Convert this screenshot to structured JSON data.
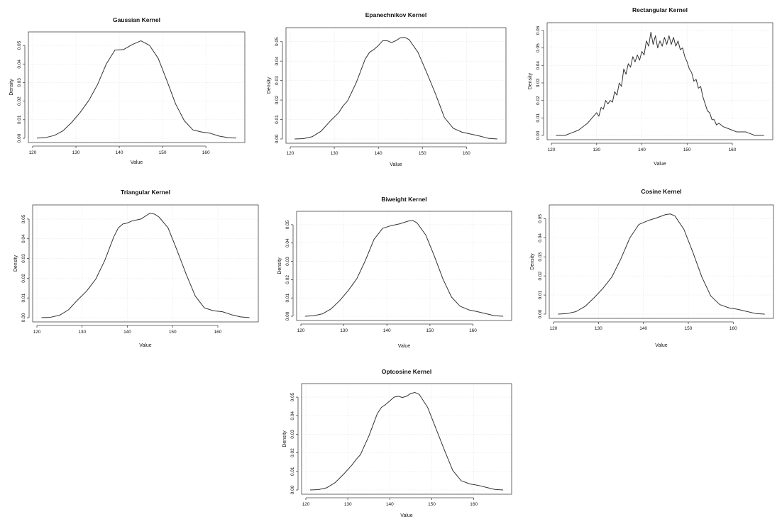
{
  "chart_data": [
    {
      "type": "line",
      "title": "Gaussian Kernel",
      "xlabel": "Value",
      "ylabel": "Density",
      "xlim": [
        120,
        168
      ],
      "ylim": [
        0,
        0.055
      ],
      "xticks": [
        120,
        130,
        140,
        150,
        160
      ],
      "yticks": [
        0.0,
        0.01,
        0.02,
        0.03,
        0.04,
        0.05
      ],
      "ytick_labels": [
        "0.00",
        "0.01",
        "0.02",
        "0.03",
        "0.04",
        "0.05"
      ],
      "grid": true,
      "x": [
        121,
        123,
        125,
        127,
        129,
        131,
        133,
        135,
        137,
        139,
        141,
        143,
        145,
        147,
        149,
        151,
        153,
        155,
        157,
        159,
        161,
        163,
        165,
        167
      ],
      "y": [
        0.0001,
        0.0004,
        0.0015,
        0.004,
        0.0085,
        0.014,
        0.0205,
        0.029,
        0.04,
        0.0475,
        0.0478,
        0.0505,
        0.0525,
        0.05,
        0.043,
        0.031,
        0.0185,
        0.0095,
        0.0045,
        0.0034,
        0.0027,
        0.0012,
        0.0004,
        0.0001
      ]
    },
    {
      "type": "line",
      "title": "Epanechnikov Kernel",
      "xlabel": "Value",
      "ylabel": "Density",
      "xlim": [
        120,
        168
      ],
      "ylim": [
        0,
        0.055
      ],
      "xticks": [
        120,
        130,
        140,
        150,
        160
      ],
      "yticks": [
        0.0,
        0.01,
        0.02,
        0.03,
        0.04,
        0.05
      ],
      "ytick_labels": [
        "0.00",
        "0.01",
        "0.02",
        "0.03",
        "0.04",
        "0.05"
      ],
      "grid": true,
      "x": [
        121,
        123,
        125,
        127,
        129,
        131,
        132,
        133,
        135,
        137,
        138,
        139,
        140,
        141,
        142,
        143,
        144,
        145,
        146,
        147,
        149,
        151,
        153,
        155,
        157,
        159,
        161,
        163,
        165,
        167
      ],
      "y": [
        0.0,
        0.0002,
        0.0012,
        0.004,
        0.009,
        0.0135,
        0.017,
        0.0195,
        0.029,
        0.041,
        0.0445,
        0.046,
        0.048,
        0.0505,
        0.0505,
        0.0495,
        0.0505,
        0.052,
        0.0522,
        0.051,
        0.0445,
        0.034,
        0.023,
        0.011,
        0.0055,
        0.0035,
        0.0025,
        0.0015,
        0.0003,
        0.0
      ]
    },
    {
      "type": "line",
      "title": "Rectangular Kernel",
      "xlabel": "Value",
      "ylabel": "Density",
      "xlim": [
        120,
        168
      ],
      "ylim": [
        0,
        0.062
      ],
      "xticks": [
        120,
        130,
        140,
        150,
        160
      ],
      "yticks": [
        0.0,
        0.01,
        0.02,
        0.03,
        0.04,
        0.05,
        0.06
      ],
      "ytick_labels": [
        "0.00",
        "0.01",
        "0.02",
        "0.03",
        "0.04",
        "0.05",
        "0.06"
      ],
      "grid": true,
      "x": [
        121,
        123,
        124,
        125,
        126,
        127,
        128,
        129,
        130,
        130.5,
        131,
        131.5,
        132,
        132.5,
        133,
        133.5,
        134,
        134.5,
        135,
        135.5,
        136,
        136.5,
        137,
        137.5,
        138,
        138.5,
        139,
        139.5,
        140,
        140.5,
        141,
        141.5,
        142,
        142.5,
        143,
        143.5,
        144,
        144.5,
        145,
        145.5,
        146,
        146.5,
        147,
        147.5,
        148,
        148.5,
        149,
        149.5,
        150,
        150.5,
        151,
        151.5,
        152,
        152.5,
        153,
        153.5,
        154,
        154.5,
        155,
        155.5,
        156,
        156.5,
        157,
        158,
        159,
        160,
        161,
        162,
        163,
        164,
        165,
        167
      ],
      "y": [
        0.0,
        0.0,
        0.001,
        0.002,
        0.003,
        0.005,
        0.007,
        0.01,
        0.013,
        0.011,
        0.016,
        0.015,
        0.02,
        0.018,
        0.02,
        0.019,
        0.025,
        0.023,
        0.03,
        0.028,
        0.038,
        0.035,
        0.041,
        0.039,
        0.045,
        0.042,
        0.046,
        0.043,
        0.048,
        0.046,
        0.054,
        0.051,
        0.059,
        0.052,
        0.057,
        0.05,
        0.054,
        0.051,
        0.056,
        0.052,
        0.057,
        0.052,
        0.056,
        0.051,
        0.054,
        0.049,
        0.05,
        0.045,
        0.042,
        0.038,
        0.036,
        0.031,
        0.032,
        0.027,
        0.028,
        0.022,
        0.018,
        0.014,
        0.013,
        0.009,
        0.009,
        0.006,
        0.007,
        0.005,
        0.004,
        0.003,
        0.002,
        0.002,
        0.002,
        0.001,
        0.0,
        0.0
      ]
    },
    {
      "type": "line",
      "title": "Triangular Kernel",
      "xlabel": "Value",
      "ylabel": "Density",
      "xlim": [
        120,
        168
      ],
      "ylim": [
        0,
        0.055
      ],
      "xticks": [
        120,
        130,
        140,
        150,
        160
      ],
      "yticks": [
        0.0,
        0.01,
        0.02,
        0.03,
        0.04,
        0.05
      ],
      "ytick_labels": [
        "0.00",
        "0.01",
        "0.02",
        "0.03",
        "0.04",
        "0.05"
      ],
      "grid": true,
      "x": [
        121,
        123,
        125,
        127,
        129,
        131,
        132,
        133,
        135,
        137,
        138,
        139,
        140,
        141,
        142,
        143,
        144,
        145,
        146,
        147,
        149,
        151,
        153,
        155,
        157,
        159,
        161,
        163,
        165,
        167
      ],
      "y": [
        0.0,
        0.0002,
        0.0012,
        0.004,
        0.009,
        0.0135,
        0.0165,
        0.0195,
        0.029,
        0.041,
        0.0455,
        0.0475,
        0.048,
        0.049,
        0.0495,
        0.05,
        0.0515,
        0.053,
        0.0525,
        0.051,
        0.0455,
        0.034,
        0.022,
        0.011,
        0.005,
        0.0035,
        0.003,
        0.0015,
        0.0004,
        0.0
      ]
    },
    {
      "type": "line",
      "title": "Biweight Kernel",
      "xlabel": "Value",
      "ylabel": "Density",
      "xlim": [
        120,
        168
      ],
      "ylim": [
        0,
        0.055
      ],
      "xticks": [
        120,
        130,
        140,
        150,
        160
      ],
      "yticks": [
        0.0,
        0.01,
        0.02,
        0.03,
        0.04,
        0.05
      ],
      "ytick_labels": [
        "0.00",
        "0.01",
        "0.02",
        "0.03",
        "0.04",
        "0.05"
      ],
      "grid": true,
      "x": [
        121,
        123,
        125,
        127,
        129,
        131,
        133,
        135,
        137,
        139,
        141,
        143,
        145,
        146,
        147,
        149,
        151,
        153,
        155,
        157,
        159,
        161,
        163,
        165,
        167
      ],
      "y": [
        0.0,
        0.0003,
        0.0013,
        0.004,
        0.0085,
        0.014,
        0.0205,
        0.0305,
        0.042,
        0.048,
        0.0495,
        0.0505,
        0.052,
        0.0523,
        0.051,
        0.0445,
        0.033,
        0.0205,
        0.0105,
        0.0055,
        0.0035,
        0.0025,
        0.0014,
        0.0003,
        0.0
      ]
    },
    {
      "type": "line",
      "title": "Cosine Kernel",
      "xlabel": "Value",
      "ylabel": "Density",
      "xlim": [
        120,
        168
      ],
      "ylim": [
        0,
        0.055
      ],
      "xticks": [
        120,
        130,
        140,
        150,
        160
      ],
      "yticks": [
        0.0,
        0.01,
        0.02,
        0.03,
        0.04,
        0.05
      ],
      "ytick_labels": [
        "0.00",
        "0.01",
        "0.02",
        "0.03",
        "0.04",
        "0.05"
      ],
      "grid": true,
      "x": [
        121,
        123,
        125,
        127,
        129,
        131,
        133,
        135,
        137,
        139,
        141,
        143,
        145,
        146,
        147,
        149,
        151,
        153,
        155,
        157,
        159,
        161,
        163,
        165,
        167
      ],
      "y": [
        0.0,
        0.0003,
        0.0013,
        0.004,
        0.0085,
        0.0135,
        0.0195,
        0.029,
        0.04,
        0.047,
        0.049,
        0.0505,
        0.0522,
        0.0525,
        0.0515,
        0.0445,
        0.0325,
        0.0195,
        0.0095,
        0.005,
        0.0033,
        0.0025,
        0.0014,
        0.0003,
        0.0
      ]
    },
    {
      "type": "line",
      "title": "Optcosine Kernel",
      "xlabel": "Value",
      "ylabel": "Density",
      "xlim": [
        120,
        168
      ],
      "ylim": [
        0,
        0.055
      ],
      "xticks": [
        120,
        130,
        140,
        150,
        160
      ],
      "yticks": [
        0.0,
        0.01,
        0.02,
        0.03,
        0.04,
        0.05
      ],
      "ytick_labels": [
        "0.00",
        "0.01",
        "0.02",
        "0.03",
        "0.04",
        "0.05"
      ],
      "grid": true,
      "x": [
        121,
        123,
        125,
        127,
        129,
        131,
        132,
        133,
        135,
        137,
        138,
        139,
        140,
        141,
        142,
        143,
        144,
        145,
        146,
        147,
        149,
        151,
        153,
        155,
        157,
        159,
        161,
        163,
        165,
        167
      ],
      "y": [
        0.0,
        0.0002,
        0.0012,
        0.004,
        0.0085,
        0.0135,
        0.0165,
        0.019,
        0.029,
        0.041,
        0.0445,
        0.046,
        0.048,
        0.05,
        0.0505,
        0.0498,
        0.0505,
        0.052,
        0.0525,
        0.0515,
        0.0445,
        0.033,
        0.0215,
        0.0105,
        0.005,
        0.0033,
        0.0025,
        0.0014,
        0.0003,
        0.0
      ]
    }
  ]
}
